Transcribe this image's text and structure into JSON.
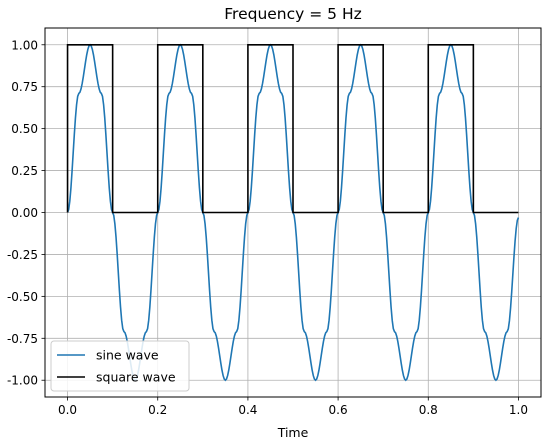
{
  "chart_data": {
    "type": "line",
    "title": "Frequency = 5 Hz",
    "xlabel": "Time",
    "ylabel": "",
    "xlim": [
      -0.05,
      1.05
    ],
    "ylim": [
      -1.1,
      1.1
    ],
    "xticks": [
      0.0,
      0.2,
      0.4,
      0.6,
      0.8,
      1.0
    ],
    "xtick_labels": [
      "0.0",
      "0.2",
      "0.4",
      "0.6",
      "0.8",
      "1.0"
    ],
    "yticks": [
      1.0,
      0.75,
      0.5,
      0.25,
      0.0,
      -0.25,
      -0.5,
      -0.75,
      -1.0
    ],
    "ytick_labels": [
      "1.00",
      "0.75",
      "0.50",
      "0.25",
      "0.00",
      "-0.25",
      "-0.50",
      "-0.75",
      "-1.00"
    ],
    "grid": true,
    "legend_position": "lower-left",
    "series": [
      {
        "name": "sine wave",
        "color": "#1f77b4",
        "x": [
          0.0,
          0.025,
          0.05,
          0.075,
          0.1,
          0.125,
          0.15,
          0.175,
          0.2,
          0.225,
          0.25,
          0.275,
          0.3,
          0.325,
          0.35,
          0.375,
          0.4,
          0.425,
          0.45,
          0.475,
          0.5,
          0.525,
          0.55,
          0.575,
          0.6,
          0.625,
          0.65,
          0.675,
          0.7,
          0.725,
          0.75,
          0.775,
          0.8,
          0.825,
          0.85,
          0.875,
          0.9,
          0.925,
          0.95,
          0.975,
          1.0
        ],
        "y": [
          0.0,
          0.71,
          1.0,
          0.71,
          0.0,
          -0.71,
          -1.0,
          -0.71,
          0.0,
          0.71,
          1.0,
          0.71,
          0.0,
          -0.71,
          -1.0,
          -0.71,
          0.0,
          0.71,
          1.0,
          0.71,
          0.0,
          -0.71,
          -1.0,
          -0.71,
          0.0,
          0.71,
          1.0,
          0.71,
          0.0,
          -0.71,
          -1.0,
          -0.71,
          0.0,
          0.71,
          1.0,
          0.71,
          0.0,
          -0.71,
          -1.0,
          -0.71,
          -0.03
        ]
      },
      {
        "name": "square wave",
        "color": "#000000",
        "x": [
          0.0,
          0.0,
          0.1,
          0.1,
          0.2,
          0.2,
          0.3,
          0.3,
          0.4,
          0.4,
          0.5,
          0.5,
          0.6,
          0.6,
          0.7,
          0.7,
          0.8,
          0.8,
          0.9,
          0.9,
          1.0
        ],
        "y": [
          0.0,
          1.0,
          1.0,
          0.0,
          0.0,
          1.0,
          1.0,
          0.0,
          0.0,
          1.0,
          1.0,
          0.0,
          0.0,
          1.0,
          1.0,
          0.0,
          0.0,
          1.0,
          1.0,
          0.0,
          0.0
        ]
      }
    ]
  }
}
